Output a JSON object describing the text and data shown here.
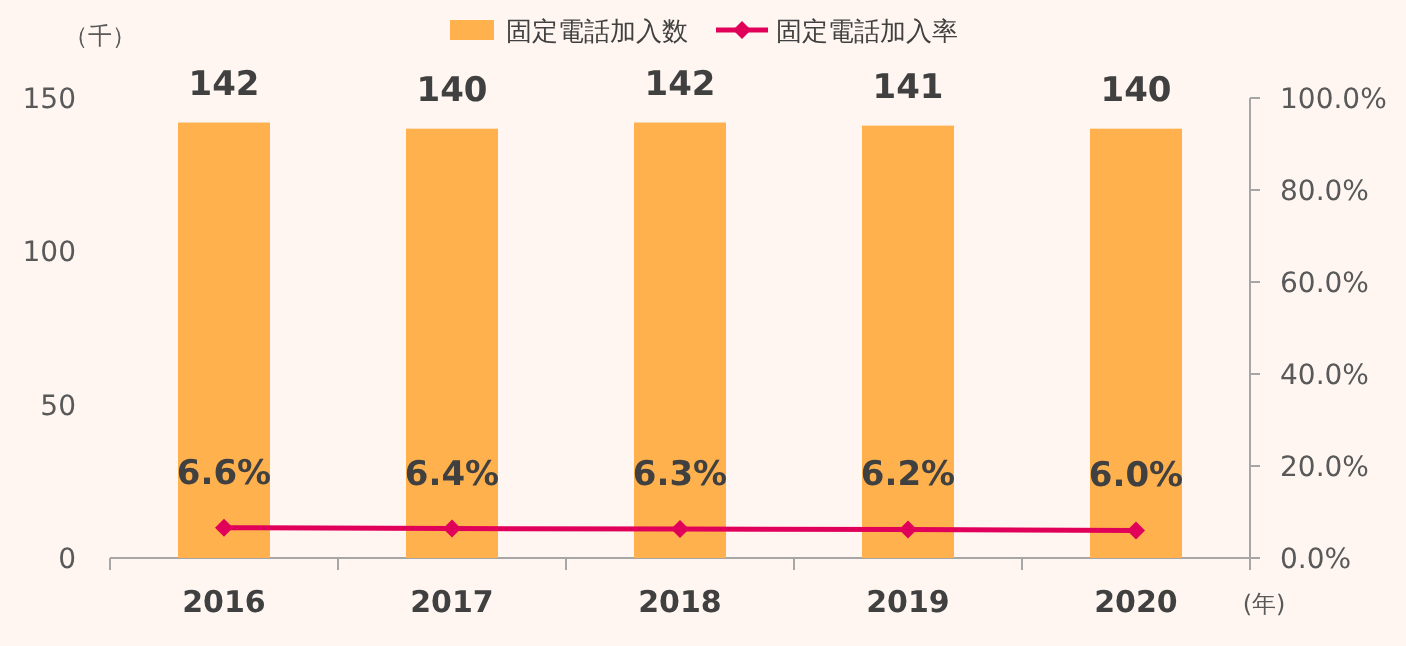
{
  "chart_data": {
    "type": "bar",
    "ylabel": "（千）",
    "xlabel": "(年)",
    "categories": [
      "2016",
      "2017",
      "2018",
      "2019",
      "2020"
    ],
    "series": [
      {
        "name": "固定電話加入数",
        "color": "#ffb14e",
        "values": [
          142,
          140,
          142,
          141,
          140
        ],
        "value_labels": [
          "142",
          "140",
          "142",
          "141",
          "140"
        ]
      },
      {
        "name": "固定電話加入率",
        "type": "line",
        "axis": "y2",
        "color": "#e0005a",
        "marker": "diamond",
        "values": [
          6.6,
          6.4,
          6.3,
          6.2,
          6.0
        ],
        "value_labels": [
          "6.6%",
          "6.4%",
          "6.3%",
          "6.2%",
          "6.0%"
        ]
      }
    ],
    "ylim": [
      0,
      150
    ],
    "yticks": [
      0,
      50,
      100,
      150
    ],
    "y2lim": [
      0,
      100
    ],
    "y2ticks": [
      {
        "value": 0,
        "label": "0.0%"
      },
      {
        "value": 20,
        "label": "20.0%"
      },
      {
        "value": 40,
        "label": "40.0%"
      },
      {
        "value": 60,
        "label": "60.0%"
      },
      {
        "value": 80,
        "label": "80.0%"
      },
      {
        "value": 100,
        "label": "100.0%"
      }
    ],
    "legend": "top",
    "grid": false
  }
}
